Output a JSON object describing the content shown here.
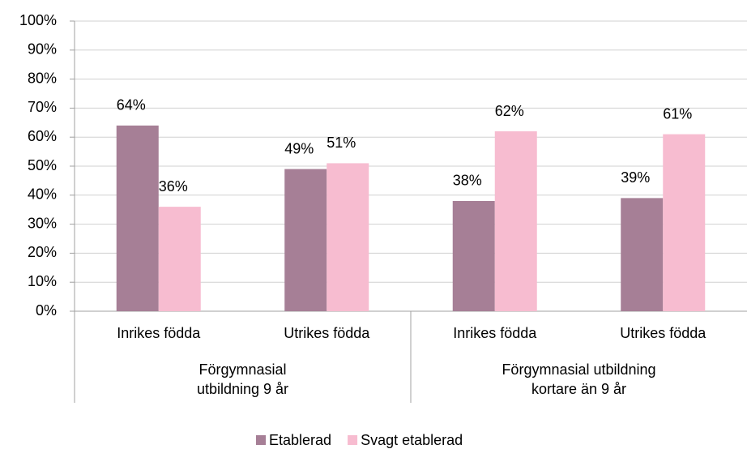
{
  "chart_data": {
    "type": "bar",
    "categories": [
      "Inrikes födda",
      "Utrikes födda",
      "Inrikes födda",
      "Utrikes födda"
    ],
    "groups": [
      {
        "label": "Förgymnasial\nutbildning 9 år",
        "size": 2
      },
      {
        "label": "Förgymnasial utbildning\nkortare än 9 år",
        "size": 2
      }
    ],
    "series": [
      {
        "name": "Etablerad",
        "color": "#a67f96",
        "values": [
          64,
          49,
          38,
          39
        ],
        "value_labels": [
          "64%",
          "49%",
          "38%",
          "39%"
        ]
      },
      {
        "name": "Svagt etablerad",
        "color": "#f7bcd0",
        "values": [
          36,
          51,
          62,
          61
        ],
        "value_labels": [
          "36%",
          "51%",
          "62%",
          "61%"
        ]
      }
    ],
    "ylim": [
      0,
      100
    ],
    "yticks": [
      {
        "value": 0,
        "label": "0%"
      },
      {
        "value": 10,
        "label": "10%"
      },
      {
        "value": 20,
        "label": "20%"
      },
      {
        "value": 30,
        "label": "30%"
      },
      {
        "value": 40,
        "label": "40%"
      },
      {
        "value": 50,
        "label": "50%"
      },
      {
        "value": 60,
        "label": "60%"
      },
      {
        "value": 70,
        "label": "70%"
      },
      {
        "value": 80,
        "label": "80%"
      },
      {
        "value": 90,
        "label": "90%"
      },
      {
        "value": 100,
        "label": "100%"
      }
    ],
    "grid": true,
    "legend": "bottom"
  }
}
